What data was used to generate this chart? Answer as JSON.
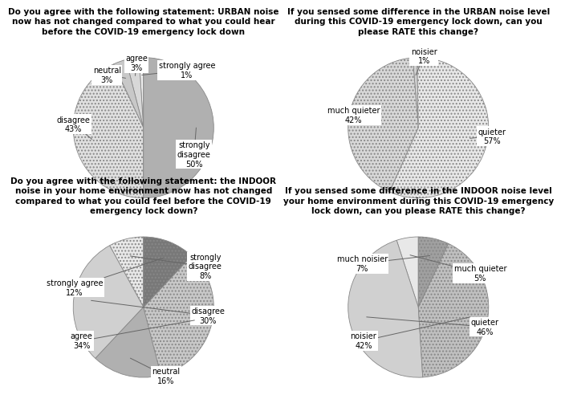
{
  "chart1": {
    "title": "Do you agree with the following statement: URBAN noise\nnow has not changed compared to what you could hear\nbefore the COVID-19 emergency lock down",
    "labels": [
      "strongly agree\n1%",
      "agree\n3%",
      "neutral\n3%",
      "disagree\n43%",
      "strongly\ndisagree\n50%"
    ],
    "values": [
      1,
      3,
      3,
      43,
      50
    ],
    "colors": [
      "#f0f0f0",
      "#d8d8d8",
      "#c8c8c8",
      "#e0e0e0",
      "#b0b0b0"
    ],
    "hatches": [
      "",
      "",
      "",
      "....",
      ""
    ],
    "startangle": 90
  },
  "chart2": {
    "title": "If you sensed some difference in the URBAN noise level\nduring this COVID-19 emergency lock down, can you\nplease RATE this change?",
    "labels": [
      "noisier\n1%",
      "much quieter\n42%",
      "quieter\n57%"
    ],
    "values": [
      1,
      42,
      57
    ],
    "colors": [
      "#d0d0d0",
      "#d8d8d8",
      "#e8e8e8"
    ],
    "hatches": [
      "",
      "....",
      "...."
    ],
    "startangle": 91
  },
  "chart3": {
    "title": "Do you agree with the following statement: the INDOOR\nnoise in your home environment now has not changed\ncompared to what you could feel before the COVID-19\nemergency lock down?",
    "labels": [
      "strongly\ndisagree\n8%",
      "disagree\n30%",
      "neutral\n16%",
      "agree\n34%",
      "strongly agree\n12%"
    ],
    "values": [
      8,
      30,
      16,
      34,
      12
    ],
    "colors": [
      "#e8e8e8",
      "#d0d0d0",
      "#b0b0b0",
      "#c8c8c8",
      "#787878"
    ],
    "hatches": [
      "....",
      "",
      "",
      "....",
      "...."
    ],
    "startangle": 90
  },
  "chart4": {
    "title": "If you sensed some difference in the INDOOR noise level\nyour home environment during this COVID-19 emergency\nlock down, can you please RATE this change?",
    "labels": [
      "much quieter\n5%",
      "quieter\n46%",
      "noisier\n42%",
      "much noisier\n7%"
    ],
    "values": [
      5,
      46,
      42,
      7
    ],
    "colors": [
      "#e8e8e8",
      "#d0d0d0",
      "#c0c0c0",
      "#a0a0a0"
    ],
    "hatches": [
      "",
      "",
      "....",
      "...."
    ],
    "startangle": 90
  },
  "title_fontsize": 7.5,
  "label_fontsize": 7.0,
  "bg_color": "#ffffff"
}
